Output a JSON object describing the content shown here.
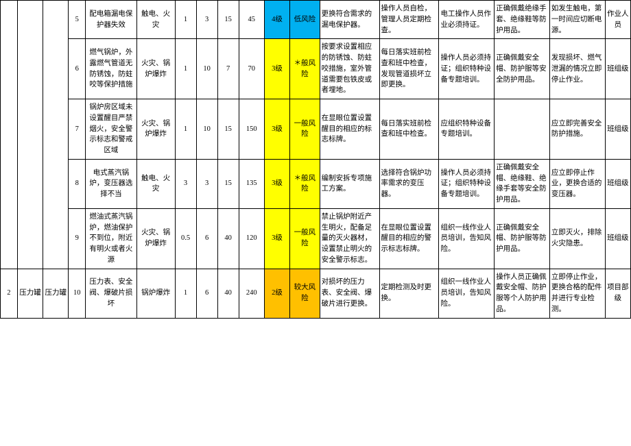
{
  "colors": {
    "yellow": "#ffff00",
    "blue": "#00b0f0",
    "orange": "#ffc000",
    "white": "#ffffff",
    "border": "#000000"
  },
  "section1": {
    "seq": "",
    "cat": "",
    "item": ""
  },
  "section2": {
    "seq": "2",
    "cat": "压力罐",
    "item": "压力罐"
  },
  "rows": [
    {
      "no": "5",
      "hazard": "配电箱漏电保护器失效",
      "harm": "触电、火灾",
      "L": "1",
      "E": "3",
      "C": "15",
      "D": "45",
      "level": "4级",
      "risk": "低风险",
      "levelColor": "#00b0f0",
      "riskColor": "#00b0f0",
      "eng": "更换符合需求的漏电保护器。",
      "mgmt": "操作人员自检，管理人员定期检查。",
      "train": "电工操作人员作业必须持证。",
      "ppe": "正确佩戴绝缘手套、绝缘鞋等防护用品。",
      "emg": "如发生触电，第一时间应切断电源。",
      "resp": "作业人员"
    },
    {
      "no": "6",
      "hazard": "燃气锅炉，外露燃气管道无防锈蚀，防蛀咬等保护措施",
      "harm": "火灾、锅炉爆炸",
      "L": "1",
      "E": "10",
      "C": "7",
      "D": "70",
      "level": "3级",
      "risk": "＊般风险",
      "levelColor": "#ffff00",
      "riskColor": "#ffff00",
      "eng": "按要求设置相应的防锈蚀、防蛀咬措施，室外管道需要包铁皮或者埋地。",
      "mgmt": "每日落实班前检查和班中检查，发现管道损坏立即更换。",
      "train": "操作人员必须持证；组织特种设备专题培训。",
      "ppe": "正确佩戴安全帽、防护服等安全防护用品。",
      "emg": "发现损坏、燃气泄漏的情况立即停止作业。",
      "resp": "班组级"
    },
    {
      "no": "7",
      "hazard": "锅炉房区域未设置醒目严禁烟火，安全警示标志和警戒区域",
      "harm": "火灾、锅炉爆炸",
      "L": "1",
      "E": "10",
      "C": "15",
      "D": "150",
      "level": "3级",
      "risk": "一般风险",
      "levelColor": "#ffff00",
      "riskColor": "#ffff00",
      "eng": "在显眼位置设置醒目的相应的标志标牌。",
      "mgmt": "每日落实班前检查和班中检查。",
      "train": "应组织特种设备专题培训。",
      "ppe": "",
      "emg": "应立即完善安全防护措施。",
      "resp": "班组级"
    },
    {
      "no": "8",
      "hazard": "电式蒸汽锅炉，变压器选择不当",
      "harm": "触电、火灾",
      "L": "3",
      "E": "3",
      "C": "15",
      "D": "135",
      "level": "3级",
      "risk": "＊般风险",
      "levelColor": "#ffff00",
      "riskColor": "#ffff00",
      "eng": "编制安拆专项施工方案。",
      "mgmt": "选择符合锅炉功率需求的变压器。",
      "train": "操作人员必须持证；组织特种设备专题培训。",
      "ppe": "正确佩戴安全帽、绝缘鞋、绝缘手套等安全防护用品。",
      "emg": "应立即停止作业，更换合适的变压器。",
      "resp": "班组级"
    },
    {
      "no": "9",
      "hazard": "燃油式蒸汽锅炉，燃油保护不到位，附近有明火或者火源",
      "harm": "火灾、锅炉爆炸",
      "L": "0.5",
      "E": "6",
      "C": "40",
      "D": "120",
      "level": "3级",
      "risk": "一般风险",
      "levelColor": "#ffff00",
      "riskColor": "#ffff00",
      "eng": "禁止锅炉附近产生明火，配备足量的灭火器材，设置禁止明火的安全警示标志。",
      "mgmt": "在显眼位置设置醒目的相应的警示标志标牌。",
      "train": "组织一线作业人员培训，告知风险。",
      "ppe": "正确佩戴安全帽、防护服等防护用品。",
      "emg": "立即灭火，排除火灾隐患。",
      "resp": "班组级"
    },
    {
      "no": "10",
      "hazard": "压力表、安全阀、爆破片损坏",
      "harm": "锅炉爆炸",
      "L": "1",
      "E": "6",
      "C": "40",
      "D": "240",
      "level": "2级",
      "risk": "较大风险",
      "levelColor": "#ffc000",
      "riskColor": "#ffc000",
      "eng": "对损坏的压力表、安全阀、爆破片进行更换。",
      "mgmt": "定期检测及时更换。",
      "train": "组织一线作业人员培训，告知风险。",
      "ppe": "操作人员正确佩戴安全帽、防护服等个人防护用品。",
      "emg": "立即停止作业，更换合格的配件并进行专业检测。",
      "resp": "项目部级"
    }
  ]
}
